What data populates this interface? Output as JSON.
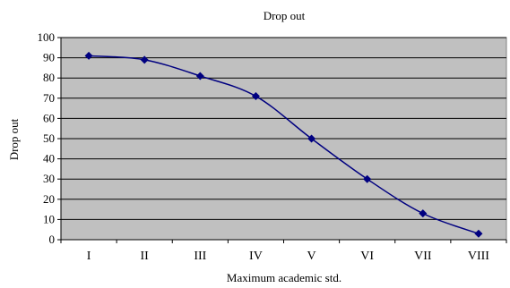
{
  "chart_data": {
    "type": "line",
    "title": "Drop out",
    "xlabel": "Maximum academic std.",
    "ylabel": "Drop out",
    "categories": [
      "I",
      "II",
      "III",
      "IV",
      "V",
      "VI",
      "VII",
      "VIII"
    ],
    "series": [
      {
        "values": [
          91,
          89,
          81,
          71,
          50,
          30,
          13,
          3
        ]
      }
    ],
    "ylim": [
      0,
      100
    ],
    "yticks": [
      0,
      10,
      20,
      30,
      40,
      50,
      60,
      70,
      80,
      90,
      100
    ],
    "grid": true,
    "legend": "none",
    "colors": {
      "plot_bg": "#c0c0c0",
      "line": "#000080",
      "marker": "#000080",
      "grid": "#000000"
    }
  }
}
